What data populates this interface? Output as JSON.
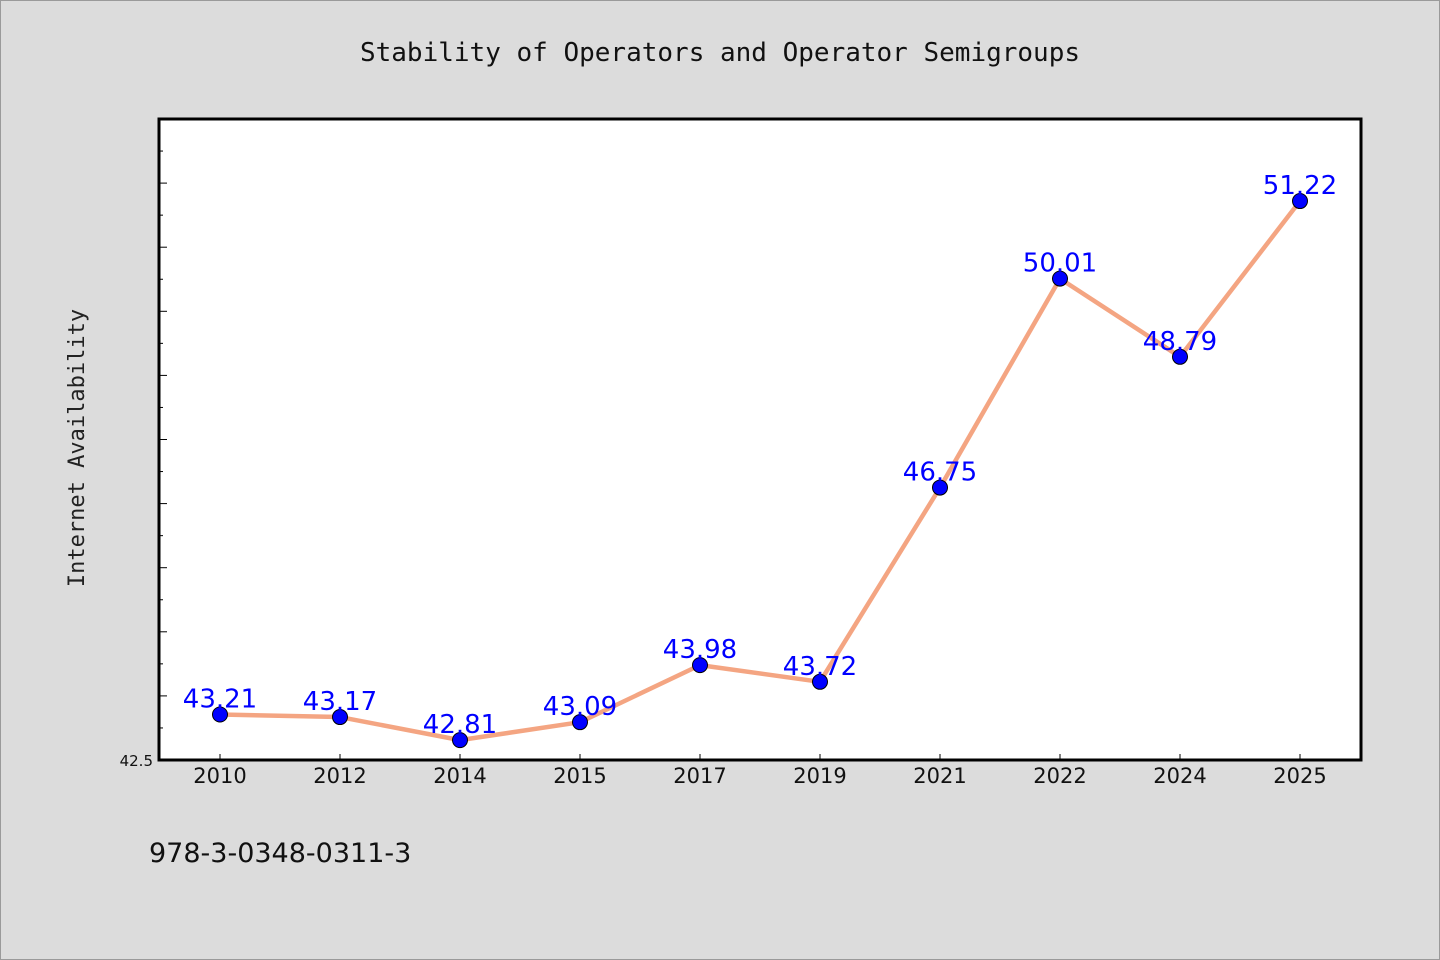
{
  "chart_data": {
    "type": "line",
    "title": "Stability of Operators and Operator Semigroups",
    "xlabel": "",
    "ylabel": "Internet Availability",
    "categories": [
      "2010",
      "2012",
      "2014",
      "2015",
      "2017",
      "2019",
      "2021",
      "2022",
      "2024",
      "2025"
    ],
    "values": [
      43.21,
      43.17,
      42.81,
      43.09,
      43.98,
      43.72,
      46.75,
      50.01,
      48.79,
      51.22
    ],
    "data_labels": [
      "43.21",
      "43.17",
      "42.81",
      "43.09",
      "43.98",
      "43.72",
      "46.75",
      "50.01",
      "48.79",
      "51.22"
    ],
    "ylim": [
      42.5,
      52.5
    ],
    "ytick_label": "42.5",
    "grid": false,
    "line_color": "#f4a582",
    "marker_color": "#0000ff",
    "label_color": "#0000ff"
  },
  "footer": {
    "isbn": "978-3-0348-0311-3"
  }
}
